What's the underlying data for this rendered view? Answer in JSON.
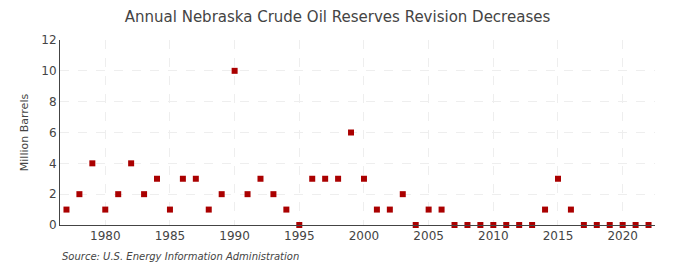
{
  "chart_data": {
    "type": "scatter",
    "title": "Annual Nebraska Crude Oil Reserves Revision Decreases",
    "ylabel": "Million Barrels",
    "annotations": [
      "Source: U.S. Energy Information Administration"
    ],
    "x": [
      1977,
      1978,
      1979,
      1980,
      1981,
      1982,
      1983,
      1984,
      1985,
      1986,
      1987,
      1988,
      1989,
      1990,
      1991,
      1992,
      1993,
      1994,
      1995,
      1996,
      1997,
      1998,
      1999,
      2000,
      2001,
      2002,
      2003,
      2004,
      2005,
      2006,
      2007,
      2008,
      2009,
      2010,
      2011,
      2012,
      2013,
      2014,
      2015,
      2016,
      2017,
      2018,
      2019,
      2020,
      2021,
      2022
    ],
    "values": [
      1,
      2,
      4,
      1,
      2,
      4,
      2,
      3,
      1,
      3,
      3,
      1,
      2,
      10,
      2,
      3,
      2,
      1,
      0,
      3,
      3,
      3,
      6,
      3,
      1,
      1,
      2,
      0,
      1,
      1,
      0,
      0,
      0,
      0,
      0,
      0,
      0,
      1,
      3,
      1,
      0,
      0,
      0,
      0,
      0,
      0
    ],
    "color": "#aa0000",
    "marker": "square",
    "xlim": [
      1976.5,
      2022.5
    ],
    "xticks": [
      1980,
      1985,
      1990,
      1995,
      2000,
      2005,
      2010,
      2015,
      2020
    ],
    "ylim": [
      0,
      12
    ],
    "yticks": [
      0,
      2,
      4,
      6,
      8,
      10,
      12
    ],
    "grid": true
  }
}
